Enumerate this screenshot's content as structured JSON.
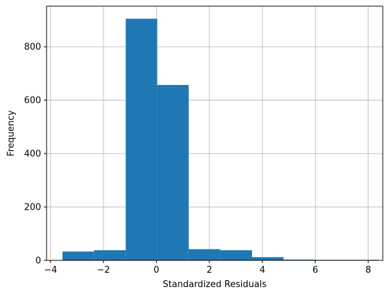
{
  "chart_data": {
    "type": "bar",
    "subtype": "histogram",
    "xlabel": "Standardized Residuals",
    "ylabel": "Frequency",
    "grid": true,
    "xlim": [
      -4.15,
      8.55
    ],
    "ylim": [
      0,
      952
    ],
    "xticks": [
      -4,
      -2,
      0,
      2,
      4,
      6,
      8
    ],
    "xtick_labels": [
      "−4",
      "−2",
      "0",
      "2",
      "4",
      "6",
      "8"
    ],
    "yticks": [
      0,
      200,
      400,
      600,
      800
    ],
    "ytick_labels": [
      "0",
      "200",
      "400",
      "600",
      "800"
    ],
    "bin_edges": [
      -3.55,
      -2.36,
      -1.16,
      0.03,
      1.22,
      2.41,
      3.61,
      4.8,
      5.99,
      7.18,
      8.37
    ],
    "values": [
      33,
      38,
      905,
      657,
      42,
      38,
      12,
      3,
      2,
      2
    ],
    "bar_color": "#1f77b4",
    "grid_color": "#b0b0b0"
  }
}
